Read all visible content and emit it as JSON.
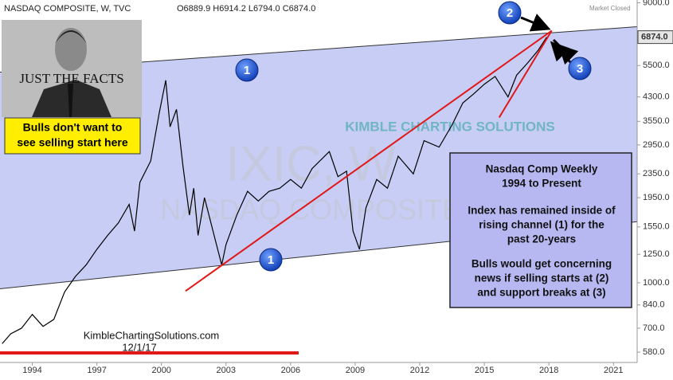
{
  "header": {
    "symbol": "NASDAQ COMPOSITE, W, TVC",
    "ohlc": "O6889.9 H6914.2 L6794.0 C6874.0",
    "status": "Market Closed"
  },
  "chart_data": {
    "type": "line",
    "log_scale": true,
    "color": "#000000",
    "x": [
      1992.6,
      1993.0,
      1993.5,
      1994.0,
      1994.5,
      1995.0,
      1995.5,
      1996.0,
      1996.5,
      1997.0,
      1997.5,
      1998.0,
      1998.5,
      1998.75,
      1999.0,
      1999.5,
      1999.9,
      2000.2,
      2000.4,
      2000.7,
      2001.0,
      2001.3,
      2001.5,
      2001.7,
      2002.0,
      2002.5,
      2002.8,
      2003.0,
      2003.5,
      2004.0,
      2004.5,
      2005.0,
      2005.5,
      2006.0,
      2006.5,
      2007.0,
      2007.8,
      2008.2,
      2008.6,
      2008.9,
      2009.2,
      2009.5,
      2010.0,
      2010.5,
      2011.0,
      2011.7,
      2012.2,
      2012.9,
      2013.5,
      2014.0,
      2014.5,
      2015.0,
      2015.5,
      2016.1,
      2016.5,
      2017.0,
      2017.5,
      2017.9
    ],
    "values": [
      620,
      670,
      700,
      780,
      710,
      750,
      930,
      1050,
      1150,
      1300,
      1450,
      1600,
      1850,
      1500,
      2200,
      2600,
      3800,
      4900,
      3400,
      3900,
      2500,
      1700,
      2100,
      1450,
      1950,
      1400,
      1150,
      1350,
      1700,
      2050,
      1900,
      2050,
      2100,
      2250,
      2100,
      2450,
      2800,
      2300,
      2400,
      1500,
      1300,
      1800,
      2250,
      2100,
      2700,
      2350,
      3050,
      2900,
      3450,
      4100,
      4400,
      4750,
      5050,
      4300,
      5100,
      5600,
      6200,
      6874
    ],
    "xlim": [
      1992.5,
      2022.1
    ],
    "xticks": [
      1994,
      1997,
      2000,
      2003,
      2006,
      2009,
      2012,
      2015,
      2018,
      2021
    ],
    "ylim": [
      545,
      9200
    ],
    "yticks": [
      {
        "value": 9000,
        "label": "9000.0"
      },
      {
        "value": 5500,
        "label": "5500.0"
      },
      {
        "value": 4300,
        "label": "4300.0"
      },
      {
        "value": 3550,
        "label": "3550.0"
      },
      {
        "value": 2950,
        "label": "2950.0"
      },
      {
        "value": 2350,
        "label": "2350.0"
      },
      {
        "value": 1950,
        "label": "1950.0"
      },
      {
        "value": 1550,
        "label": "1550.0"
      },
      {
        "value": 1250,
        "label": "1250.0"
      },
      {
        "value": 1000,
        "label": "1000.0"
      },
      {
        "value": 840,
        "label": "840.0"
      },
      {
        "value": 700,
        "label": "700.0"
      },
      {
        "value": 580,
        "label": "580.0"
      }
    ],
    "last_value": {
      "value": 6874,
      "label": "6874.0"
    },
    "channel": {
      "x": [
        1992.5,
        2022.1
      ],
      "upper": [
        5220,
        7460
      ],
      "lower": [
        954,
        1615
      ],
      "color": "#c8cdf5"
    },
    "trendlines": [
      {
        "x": [
          2001.12,
          2018.13
        ],
        "y": [
          937,
          7230
        ],
        "color": "#e01818"
      },
      {
        "x": [
          2015.69,
          2018.13
        ],
        "y": [
          3659,
          7230
        ],
        "color": "#e01818"
      }
    ]
  },
  "annotations": {
    "photo_caption": "JUST THE FACTS",
    "warning": [
      "Bulls don't want to",
      "see selling start here"
    ],
    "markers": [
      "1",
      "1",
      "2",
      "3"
    ],
    "note": [
      "Nasdaq Comp Weekly",
      "1994 to Present",
      "Index has remained inside of",
      "rising channel (1) for the",
      "past 20-years",
      "Bulls would get concerning",
      "news if selling starts at (2)",
      "and support breaks at (3)"
    ],
    "watermark": [
      "IXIC, W",
      "NASDAQ COMPOSITE",
      "KIMBLE CHARTING SOLUTIONS"
    ],
    "source": "KimbleChartingSolutions.com",
    "date": "12/1/17"
  }
}
